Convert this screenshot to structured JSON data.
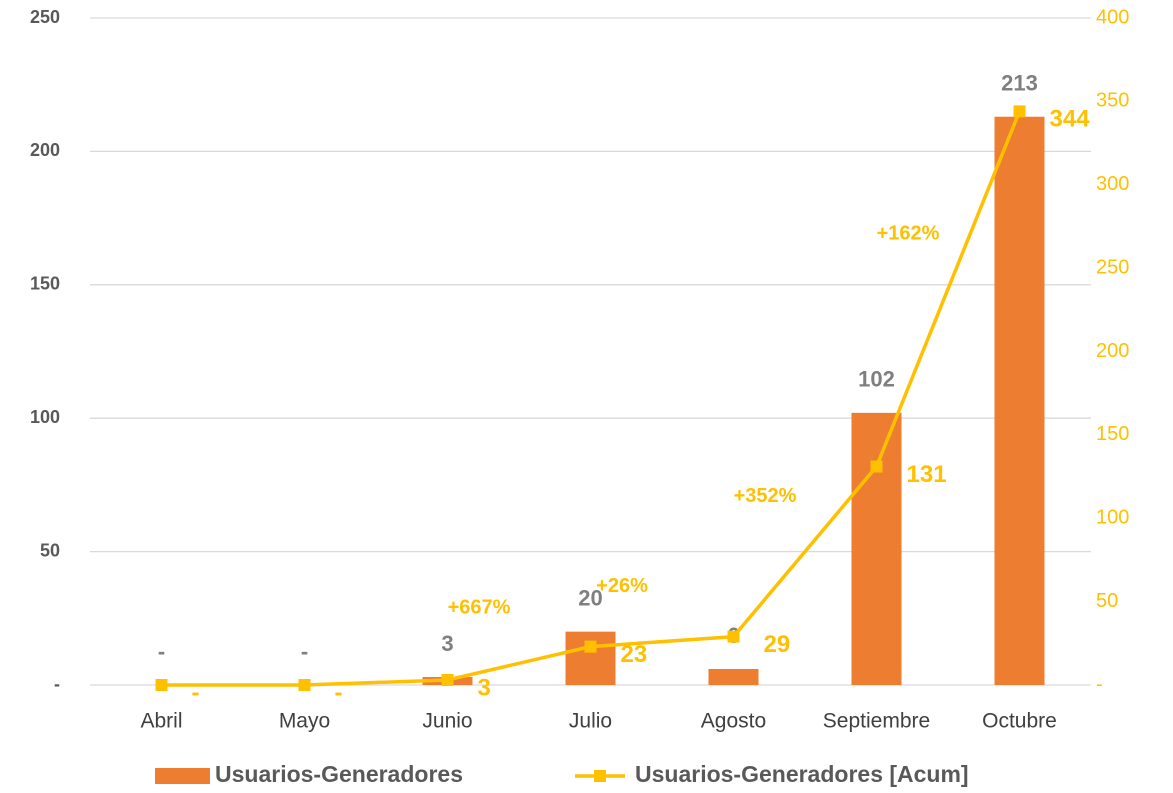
{
  "chart_data": {
    "type": "bar",
    "categories": [
      "Abril",
      "Mayo",
      "Junio",
      "Julio",
      "Agosto",
      "Septiembre",
      "Octubre"
    ],
    "series": [
      {
        "name": "Usuarios-Generadores",
        "type": "bar",
        "color": "#ed7d31",
        "values": [
          0,
          0,
          3,
          20,
          6,
          102,
          213
        ],
        "value_labels": [
          "-",
          "-",
          "3",
          "20",
          "6",
          "102",
          "213"
        ]
      },
      {
        "name": "Usuarios-Generadores [Acum]",
        "type": "line",
        "axis": "y2",
        "color": "#ffc000",
        "values": [
          0,
          0,
          3,
          23,
          29,
          131,
          344
        ],
        "value_labels": [
          "-",
          "-",
          "3",
          "23",
          "29",
          "131",
          "344"
        ]
      }
    ],
    "growth_labels": [
      "+667%",
      "+26%",
      "+352%",
      "+162%"
    ],
    "ylim": [
      0,
      250
    ],
    "yticks": [
      {
        "value": 0,
        "label": "-"
      },
      50,
      100,
      150,
      200,
      250
    ],
    "y2lim": [
      0,
      400
    ],
    "y2ticks": [
      {
        "value": 0,
        "label": "-"
      },
      50,
      100,
      150,
      200,
      250,
      300,
      350,
      400
    ],
    "grid": true,
    "legend": "bottom"
  }
}
